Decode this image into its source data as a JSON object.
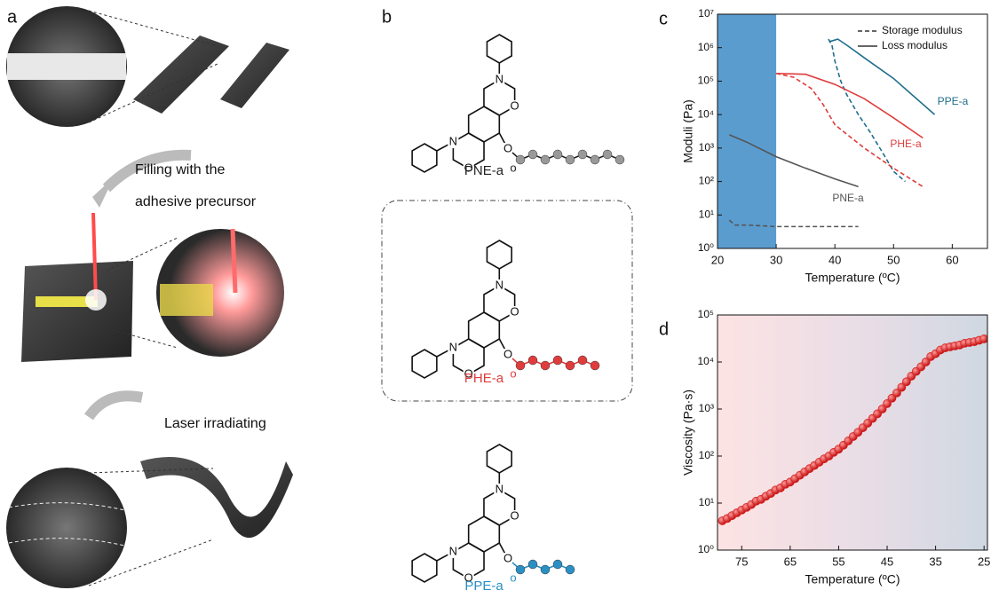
{
  "panel_a": {
    "label": "a",
    "step1": [
      "Filling with the",
      "adhesive precursor"
    ],
    "step2": "Laser irradiating"
  },
  "panel_b": {
    "label": "b",
    "atoms": {
      "N": "N",
      "O": "O",
      "carbonyl": "o"
    },
    "compounds": [
      {
        "name": "PNE-a",
        "color": "#222222"
      },
      {
        "name": "PHE-a",
        "color": "#e03c3c"
      },
      {
        "name": "PPE-a",
        "color": "#2a8fc4"
      }
    ]
  },
  "chart_data": [
    {
      "type": "line",
      "label": "c",
      "xlabel": "Temperature (ºC)",
      "ylabel": "Moduli (Pa)",
      "xlim": [
        20,
        66
      ],
      "xticks": [
        20,
        30,
        40,
        50,
        60
      ],
      "ylim": [
        1,
        10000000
      ],
      "log_y": true,
      "yticks": [
        {
          "value": 1,
          "label": "10⁰"
        },
        {
          "value": 10,
          "label": "10¹"
        },
        {
          "value": 100,
          "label": "10²"
        },
        {
          "value": 1000,
          "label": "10³"
        },
        {
          "value": 10000,
          "label": "10⁴"
        },
        {
          "value": 100000,
          "label": "10⁵"
        },
        {
          "value": 1000000,
          "label": "10⁶"
        },
        {
          "value": 10000000,
          "label": "10⁷"
        }
      ],
      "shaded_range": [
        20,
        30
      ],
      "shade_color": "#5b9ccf",
      "legend": {
        "storage": "Storage modulus",
        "loss": "Loss modulus"
      },
      "materials": [
        {
          "name": "PPE-a",
          "color": "#1f6e8c",
          "storage": {
            "x": [
              38.9,
              39.5,
              40,
              40.5,
              41,
              42,
              44,
              46,
              48,
              50,
              52
            ],
            "values": [
              1800000,
              1200000,
              400000,
              200000,
              100000,
              40000,
              10000,
              3000,
              800,
              200,
              100
            ]
          },
          "loss": {
            "x": [
              39,
              40.5,
              42,
              45,
              50,
              57
            ],
            "values": [
              1500000,
              1800000,
              1200000,
              500000,
              120000,
              10000
            ]
          }
        },
        {
          "name": "PHE-a",
          "color": "#e03c3c",
          "storage": {
            "x": [
              30,
              33,
              36,
              38,
              40,
              45,
              50,
              55
            ],
            "values": [
              170000,
              130000,
              60000,
              20000,
              5000,
              1000,
              250,
              70
            ]
          },
          "loss": {
            "x": [
              30,
              35,
              40,
              45,
              50,
              55
            ],
            "values": [
              170000,
              160000,
              80000,
              30000,
              8000,
              2000
            ]
          }
        },
        {
          "name": "PNE-a",
          "color": "#555555",
          "storage": {
            "x": [
              22,
              23,
              25,
              30,
              35,
              40,
              44
            ],
            "values": [
              7,
              5,
              5,
              4.5,
              4.5,
              4.5,
              4.5
            ]
          },
          "loss": {
            "x": [
              22,
              25,
              30,
              35,
              40,
              44
            ],
            "values": [
              2500,
              1500,
              550,
              250,
              120,
              70
            ]
          }
        }
      ]
    },
    {
      "type": "scatter",
      "label": "d",
      "xlabel": "Temperature (ºC)",
      "ylabel": "Viscosity (Pa·s)",
      "xlim": [
        80,
        24.3
      ],
      "xticks": [
        75,
        65,
        55,
        45,
        35,
        25
      ],
      "ylim": [
        1,
        100000
      ],
      "log_y": true,
      "yticks": [
        {
          "value": 1,
          "label": "10⁰"
        },
        {
          "value": 10,
          "label": "10¹"
        },
        {
          "value": 100,
          "label": "10²"
        },
        {
          "value": 1000,
          "label": "10³"
        },
        {
          "value": 10000,
          "label": "10⁴"
        },
        {
          "value": 100000,
          "label": "10⁵"
        }
      ],
      "color": "#d42020",
      "x": [
        79,
        78,
        77,
        76,
        75,
        74,
        73,
        72,
        71,
        70,
        69,
        68,
        67,
        66,
        65,
        64,
        63,
        62,
        61,
        60,
        59,
        58,
        57,
        56,
        55,
        54,
        53,
        52,
        51,
        50,
        49,
        48,
        47,
        46,
        45,
        44,
        43,
        42,
        41,
        40,
        39,
        38,
        37,
        36,
        35,
        34,
        33,
        32,
        31,
        30,
        29,
        28,
        27,
        26,
        25
      ],
      "values": [
        4.2,
        4.7,
        5.4,
        6.2,
        7.1,
        8.1,
        9.3,
        11,
        12,
        14,
        16,
        19,
        21,
        25,
        28,
        33,
        39,
        46,
        54,
        63,
        74,
        87,
        100,
        120,
        140,
        170,
        210,
        260,
        320,
        400,
        500,
        630,
        790,
        1000,
        1300,
        1700,
        2200,
        2900,
        3800,
        5000,
        6300,
        7900,
        10000,
        13000,
        15000,
        18000,
        20000,
        21000,
        22000,
        23000,
        25000,
        26000,
        27000,
        29000,
        31000
      ]
    }
  ]
}
